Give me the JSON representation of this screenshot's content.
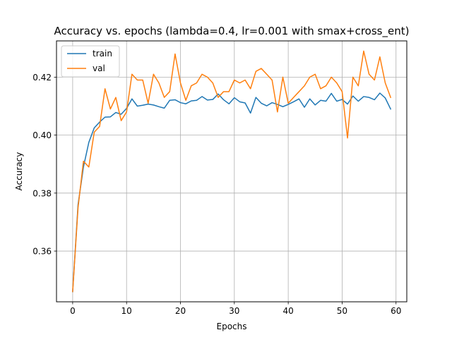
{
  "chart_data": {
    "type": "line",
    "title": "Accuracy vs. epochs (lambda=0.4, lr=0.001 with smax+cross_ent)",
    "xlabel": "Epochs",
    "ylabel": "Accuracy",
    "xlim": [
      -3,
      62
    ],
    "ylim": [
      0.3425,
      0.4325
    ],
    "xticks": [
      0,
      10,
      20,
      30,
      40,
      50,
      60
    ],
    "xtick_labels": [
      "0",
      "10",
      "20",
      "30",
      "40",
      "50",
      "60"
    ],
    "yticks": [
      0.36,
      0.38,
      0.4,
      0.42
    ],
    "ytick_labels": [
      "0.36",
      "0.38",
      "0.40",
      "0.42"
    ],
    "grid": true,
    "legend_position": "top-left",
    "x": [
      0,
      1,
      2,
      3,
      4,
      5,
      6,
      7,
      8,
      9,
      10,
      11,
      12,
      13,
      14,
      15,
      16,
      17,
      18,
      19,
      20,
      21,
      22,
      23,
      24,
      25,
      26,
      27,
      28,
      29,
      30,
      31,
      32,
      33,
      34,
      35,
      36,
      37,
      38,
      39,
      40,
      41,
      42,
      43,
      44,
      45,
      46,
      47,
      48,
      49,
      50,
      51,
      52,
      53,
      54,
      55,
      56,
      57,
      58,
      59
    ],
    "series": [
      {
        "name": "train",
        "color": "#1f77b4",
        "values": [
          0.346,
          0.376,
          0.389,
          0.3975,
          0.4025,
          0.4045,
          0.4062,
          0.4063,
          0.4078,
          0.4072,
          0.4092,
          0.4125,
          0.41,
          0.4103,
          0.4107,
          0.4104,
          0.4098,
          0.4093,
          0.412,
          0.4122,
          0.4112,
          0.4108,
          0.4118,
          0.412,
          0.4133,
          0.4121,
          0.4123,
          0.4142,
          0.4122,
          0.4108,
          0.4129,
          0.4115,
          0.4111,
          0.4076,
          0.413,
          0.411,
          0.4101,
          0.4112,
          0.4106,
          0.4098,
          0.4106,
          0.4115,
          0.4125,
          0.4096,
          0.4125,
          0.4104,
          0.412,
          0.4117,
          0.4144,
          0.4117,
          0.4123,
          0.4107,
          0.4135,
          0.4117,
          0.4133,
          0.413,
          0.4122,
          0.4145,
          0.4128,
          0.409
        ]
      },
      {
        "name": "val",
        "color": "#ff7f0e",
        "values": [
          0.346,
          0.375,
          0.391,
          0.389,
          0.401,
          0.403,
          0.416,
          0.409,
          0.413,
          0.405,
          0.408,
          0.421,
          0.419,
          0.419,
          0.411,
          0.421,
          0.418,
          0.413,
          0.415,
          0.428,
          0.418,
          0.412,
          0.417,
          0.418,
          0.421,
          0.42,
          0.418,
          0.413,
          0.415,
          0.415,
          0.419,
          0.418,
          0.419,
          0.416,
          0.422,
          0.423,
          0.421,
          0.419,
          0.408,
          0.42,
          0.411,
          0.413,
          0.415,
          0.417,
          0.42,
          0.421,
          0.416,
          0.417,
          0.42,
          0.418,
          0.415,
          0.399,
          0.42,
          0.417,
          0.429,
          0.421,
          0.419,
          0.427,
          0.418,
          0.413
        ]
      }
    ]
  }
}
